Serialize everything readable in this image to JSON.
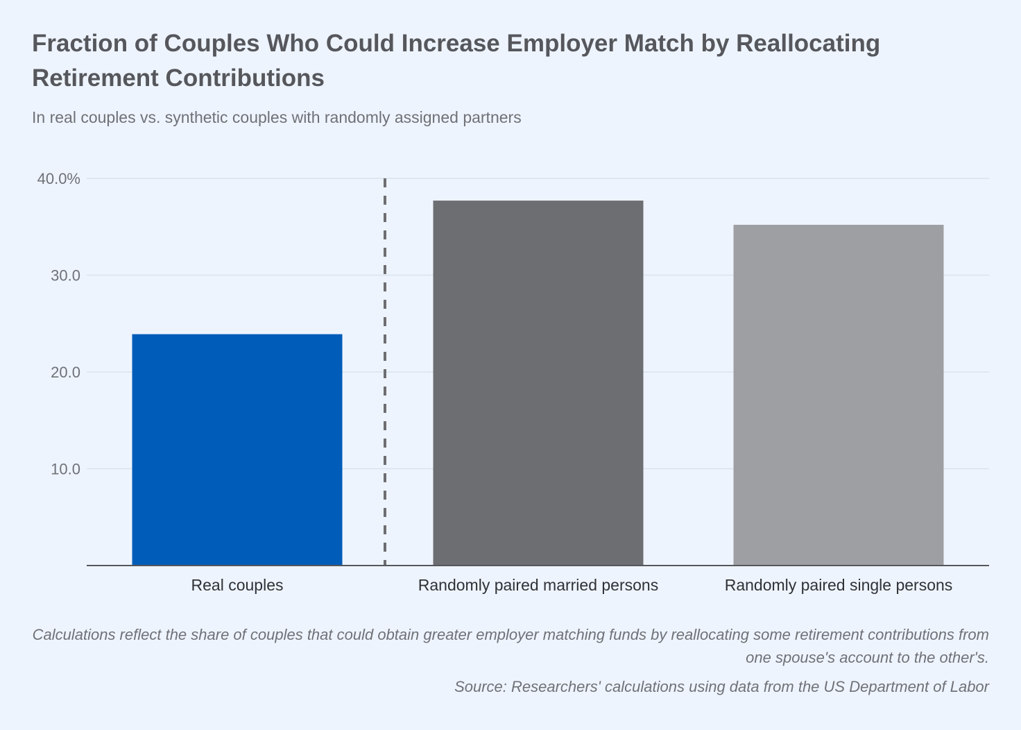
{
  "title": "Fraction of Couples Who Could Increase Employer Match by Reallocating Retirement Contributions",
  "subtitle": "In real couples vs. synthetic couples with randomly assigned partners",
  "notes": {
    "calculation": "Calculations reflect the share of couples that could obtain greater employer matching funds by reallocating some retirement contributions from one spouse's account to the other's.",
    "source": "Source: Researchers' calculations using data from the US Department of Labor"
  },
  "colors": {
    "background": "#eef4fd",
    "real": "#005cb9",
    "married": "#6d6e72",
    "single": "#9e9fa2",
    "grid": "#d9e2ef",
    "axis": "#55575c",
    "divider": "#6d6e72"
  },
  "chart_data": {
    "type": "bar",
    "categories": [
      "Real couples",
      "Randomly paired married persons",
      "Randomly paired single persons"
    ],
    "values": [
      23.9,
      37.7,
      35.2
    ],
    "bar_colors": [
      "#005cb9",
      "#6d6e72",
      "#9e9fa2"
    ],
    "ylim": [
      0,
      40
    ],
    "yticks": [
      10,
      20,
      30,
      40
    ],
    "ytick_labels": [
      "10.0",
      "20.0",
      "30.0",
      "40.0%"
    ],
    "grid": true,
    "divider_after_category": 0,
    "xlabel": "",
    "ylabel": ""
  }
}
